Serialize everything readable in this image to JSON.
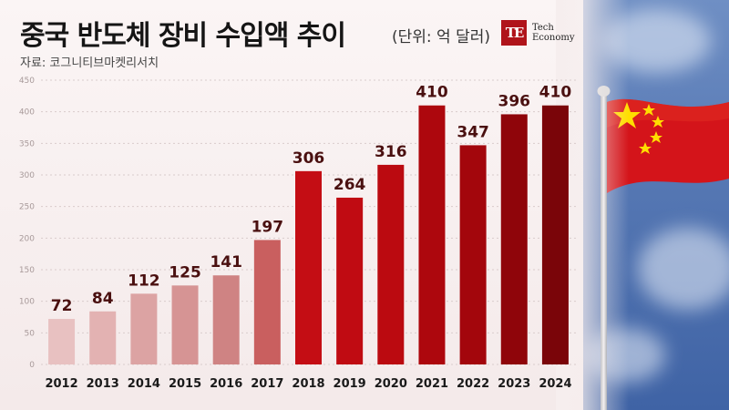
{
  "header": {
    "title": "중국 반도체 장비 수입액 추이",
    "unit": "(단위: 억 달러)",
    "source": "자료: 코그니티브마켓리서치"
  },
  "logo": {
    "mark": "TE",
    "line1": "Tech",
    "line2": "Economy"
  },
  "colors": {
    "accent": "#b0141b"
  },
  "chart_data": {
    "type": "bar",
    "title": "중국 반도체 장비 수입액 추이",
    "ylabel": "",
    "xlabel": "",
    "ylim": [
      0,
      450
    ],
    "yticks": [
      0,
      50,
      100,
      150,
      200,
      250,
      300,
      350,
      400,
      450
    ],
    "grid": true,
    "categories": [
      "2012",
      "2013",
      "2014",
      "2015",
      "2016",
      "2017",
      "2018",
      "2019",
      "2020",
      "2021",
      "2022",
      "2023",
      "2024"
    ],
    "values": [
      72,
      84,
      112,
      125,
      141,
      197,
      306,
      264,
      316,
      410,
      347,
      396,
      410
    ],
    "bar_colors": [
      "#e8c1c1",
      "#e3b2b2",
      "#dca3a3",
      "#d69494",
      "#cf8383",
      "#c95f5f",
      "#c40d14",
      "#c00b12",
      "#bb0a10",
      "#ad070d",
      "#a3060c",
      "#8f050a",
      "#7a0509"
    ]
  }
}
